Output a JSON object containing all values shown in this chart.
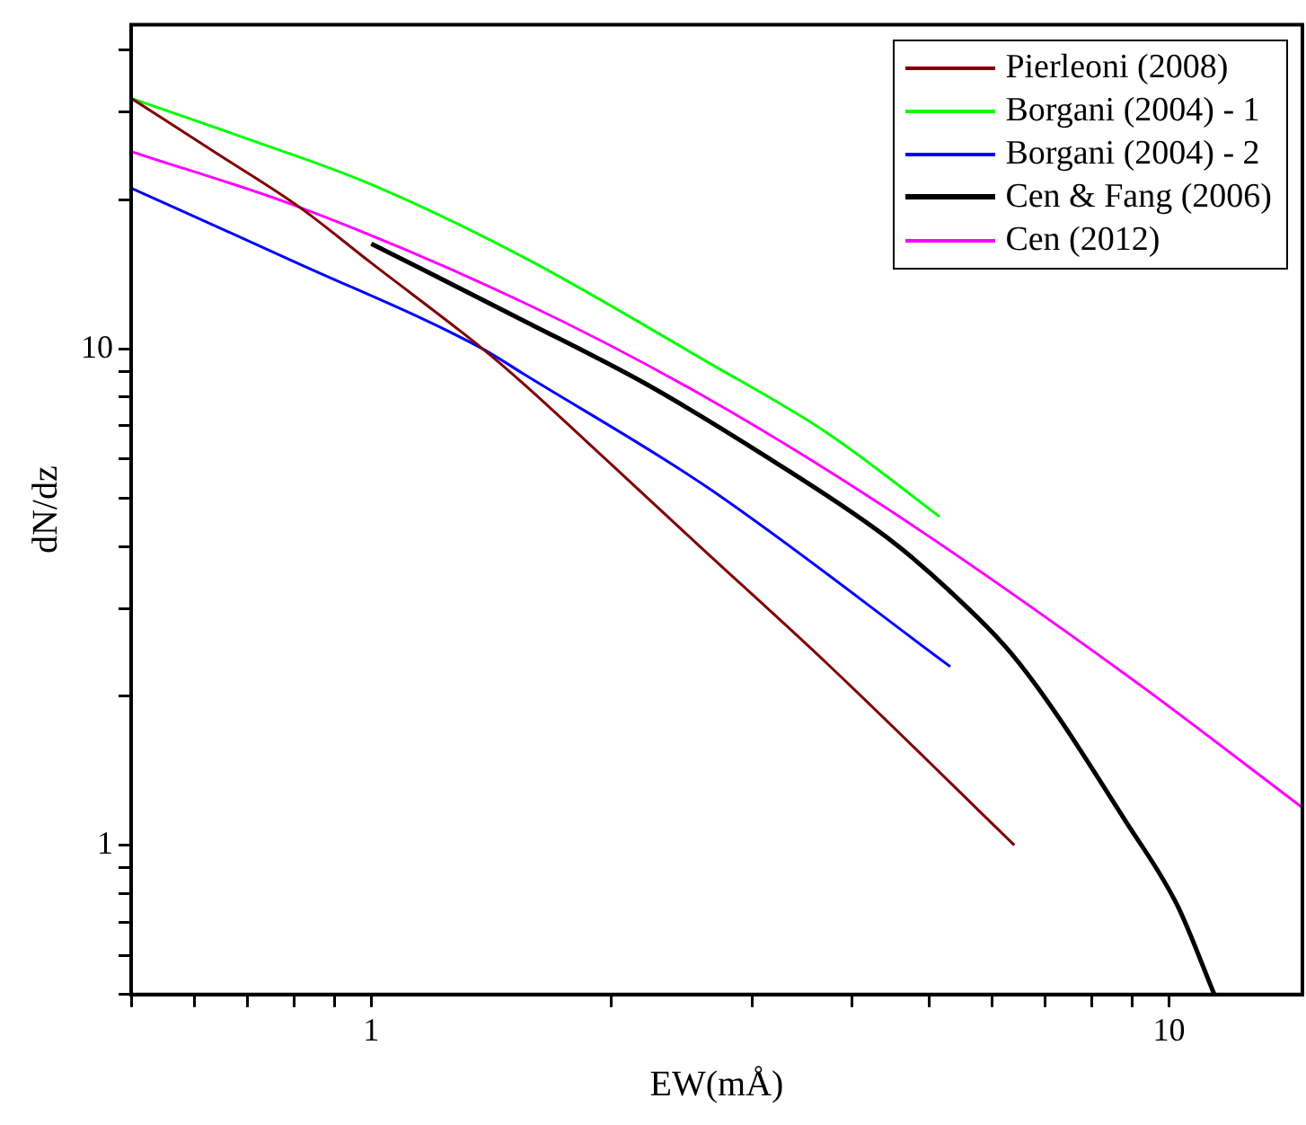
{
  "chart_data": {
    "type": "line",
    "xlabel": "EW(mÅ)",
    "ylabel": "dN/dz",
    "log": "xy",
    "grid": false,
    "legend": "top right",
    "marker": "none",
    "line_style": "solid",
    "xlim": [
      0.5,
      14.7
    ],
    "ylim": [
      0.5,
      45
    ],
    "xticks": [
      {
        "value": 0.5,
        "label": null
      },
      {
        "value": 0.6,
        "label": null
      },
      {
        "value": 0.7,
        "label": null
      },
      {
        "value": 0.8,
        "label": null
      },
      {
        "value": 0.9,
        "label": null
      },
      1,
      {
        "value": 2,
        "label": null
      },
      {
        "value": 3,
        "label": null
      },
      {
        "value": 4,
        "label": null
      },
      {
        "value": 5,
        "label": null
      },
      {
        "value": 6,
        "label": null
      },
      {
        "value": 7,
        "label": null
      },
      {
        "value": 8,
        "label": null
      },
      {
        "value": 9,
        "label": null
      },
      10
    ],
    "yticks": [
      {
        "value": 0.5,
        "label": null
      },
      {
        "value": 0.6,
        "label": null
      },
      {
        "value": 0.7,
        "label": null
      },
      {
        "value": 0.8,
        "label": null
      },
      {
        "value": 0.9,
        "label": null
      },
      1,
      {
        "value": 2,
        "label": null
      },
      {
        "value": 3,
        "label": null
      },
      {
        "value": 4,
        "label": null
      },
      {
        "value": 5,
        "label": null
      },
      {
        "value": 6,
        "label": null
      },
      {
        "value": 7,
        "label": null
      },
      {
        "value": 8,
        "label": null
      },
      {
        "value": 9,
        "label": null
      },
      10,
      {
        "value": 20,
        "label": null
      },
      {
        "value": 30,
        "label": null
      },
      {
        "value": 40,
        "label": null
      }
    ],
    "series": [
      {
        "name": "Pierleoni (2008)",
        "color": "#800000",
        "x": [
          0.5,
          0.65,
          0.813,
          1,
          1.38,
          1.553,
          2,
          2.56,
          3.73,
          6.4
        ],
        "values": [
          32,
          24.4,
          19.3,
          14.9,
          10,
          8.5,
          5.85,
          4.05,
          2.32,
          1.0
        ]
      },
      {
        "name": "Borgani (2004) - 1",
        "color": "#00ff00",
        "x": [
          0.5,
          0.7,
          0.99,
          1.553,
          2.63,
          3.73,
          5.16
        ],
        "values": [
          32,
          26.5,
          21.6,
          15.3,
          9.44,
          6.77,
          4.59
        ]
      },
      {
        "name": "Borgani (2004) - 2",
        "color": "#0000ff",
        "x": [
          0.5,
          0.8,
          1.38,
          1.553,
          2.63,
          5.32
        ],
        "values": [
          21.1,
          15,
          10,
          8.9,
          5.28,
          2.29
        ]
      },
      {
        "name": "Cen & Fang (2006)",
        "color": "#000000",
        "x": [
          1,
          1.553,
          2.21,
          3.12,
          4.43,
          5.28,
          6.5,
          8.85,
          10.25,
          11.4
        ],
        "values": [
          16.3,
          11.4,
          8.5,
          6.08,
          4.17,
          3.28,
          2.32,
          1.11,
          0.755,
          0.5
        ]
      },
      {
        "name": "Cen (2012)",
        "color": "#ff00ff",
        "x": [
          0.5,
          0.813,
          1.553,
          2.63,
          4.43,
          8.85,
          14.7
        ],
        "values": [
          25,
          19.3,
          12.4,
          7.98,
          4.77,
          2.2,
          1.19
        ]
      }
    ]
  }
}
